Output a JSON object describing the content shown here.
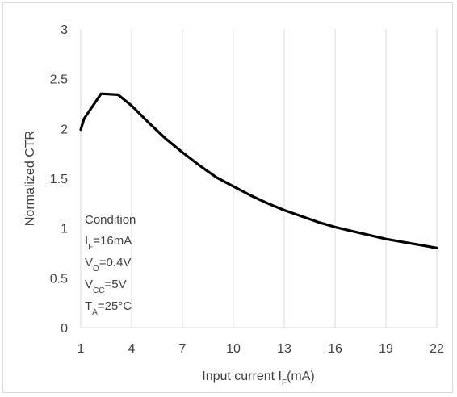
{
  "chart_data": {
    "type": "line",
    "title": "",
    "xlabel": {
      "main": "Input current I",
      "sub": "F",
      "suffix": "(mA)"
    },
    "ylabel": "Normalized CTR",
    "xlim": [
      1,
      22
    ],
    "ylim": [
      0,
      3
    ],
    "x_ticks": [
      "1",
      "4",
      "7",
      "10",
      "13",
      "16",
      "19",
      "22"
    ],
    "y_ticks": [
      "0",
      "0.5",
      "1",
      "1.5",
      "2",
      "2.5",
      "3"
    ],
    "grid": "vertical",
    "series": [
      {
        "x": [
          1,
          1.2,
          2.2,
          3.2,
          4,
          5,
          6,
          7,
          8,
          9,
          10,
          11,
          12,
          13,
          14,
          15,
          16,
          17,
          18,
          19,
          20,
          21,
          22
        ],
        "values": [
          1.99,
          2.1,
          2.35,
          2.34,
          2.23,
          2.06,
          1.9,
          1.76,
          1.63,
          1.51,
          1.42,
          1.33,
          1.25,
          1.18,
          1.12,
          1.06,
          1.01,
          0.97,
          0.93,
          0.89,
          0.86,
          0.83,
          0.8
        ]
      }
    ],
    "condition": {
      "heading": "Condition",
      "lines": [
        {
          "main": "I",
          "sub": "F",
          "rest": "=16mA"
        },
        {
          "main": "V",
          "sub": "O",
          "rest": "=0.4V"
        },
        {
          "main": "V",
          "sub": "CC",
          "rest": "=5V"
        },
        {
          "main": "T",
          "sub": "A",
          "rest": "=25°C"
        }
      ]
    }
  }
}
